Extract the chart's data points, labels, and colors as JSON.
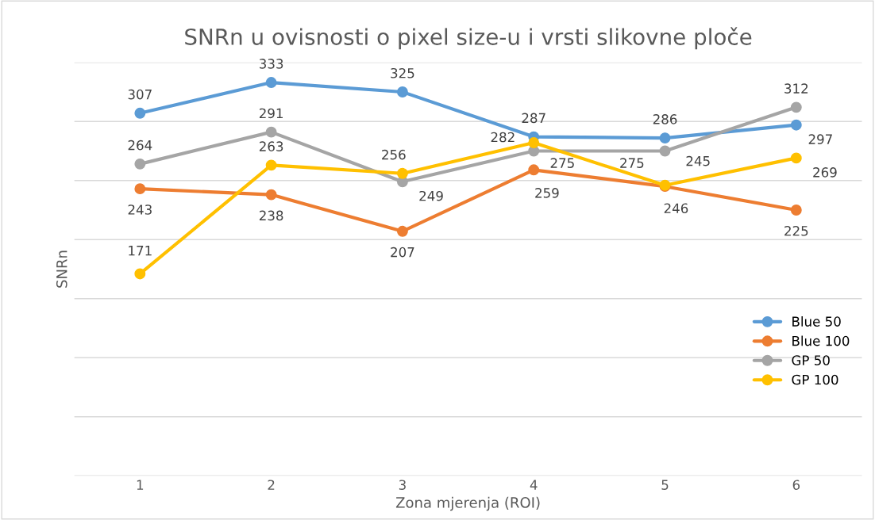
{
  "chart_data": {
    "type": "line",
    "title": "SNRn u ovisnosti o pixel size-u i vrsti slikovne ploče",
    "xlabel": "Zona mjerenja (ROI)",
    "ylabel": "SNRn",
    "categories": [
      "1",
      "2",
      "3",
      "4",
      "5",
      "6"
    ],
    "series": [
      {
        "name": "Blue 50",
        "color": "#5b9bd5",
        "values": [
          307,
          333,
          325,
          287,
          286,
          297
        ]
      },
      {
        "name": "Blue 100",
        "color": "#ed7d31",
        "values": [
          243,
          238,
          207,
          259,
          245,
          225
        ]
      },
      {
        "name": "GP 50",
        "color": "#a5a5a5",
        "values": [
          264,
          291,
          249,
          275,
          275,
          312
        ]
      },
      {
        "name": "GP 100",
        "color": "#ffc000",
        "values": [
          171,
          263,
          256,
          282,
          246,
          269
        ]
      }
    ],
    "ylim": [
      0,
      350
    ],
    "yticks": [
      0,
      50,
      100,
      150,
      200,
      250,
      300,
      350
    ],
    "tick_labels": "x",
    "grid": "y",
    "legend": "right",
    "marker": "circle",
    "line_style": "solid",
    "data_labels": true
  }
}
